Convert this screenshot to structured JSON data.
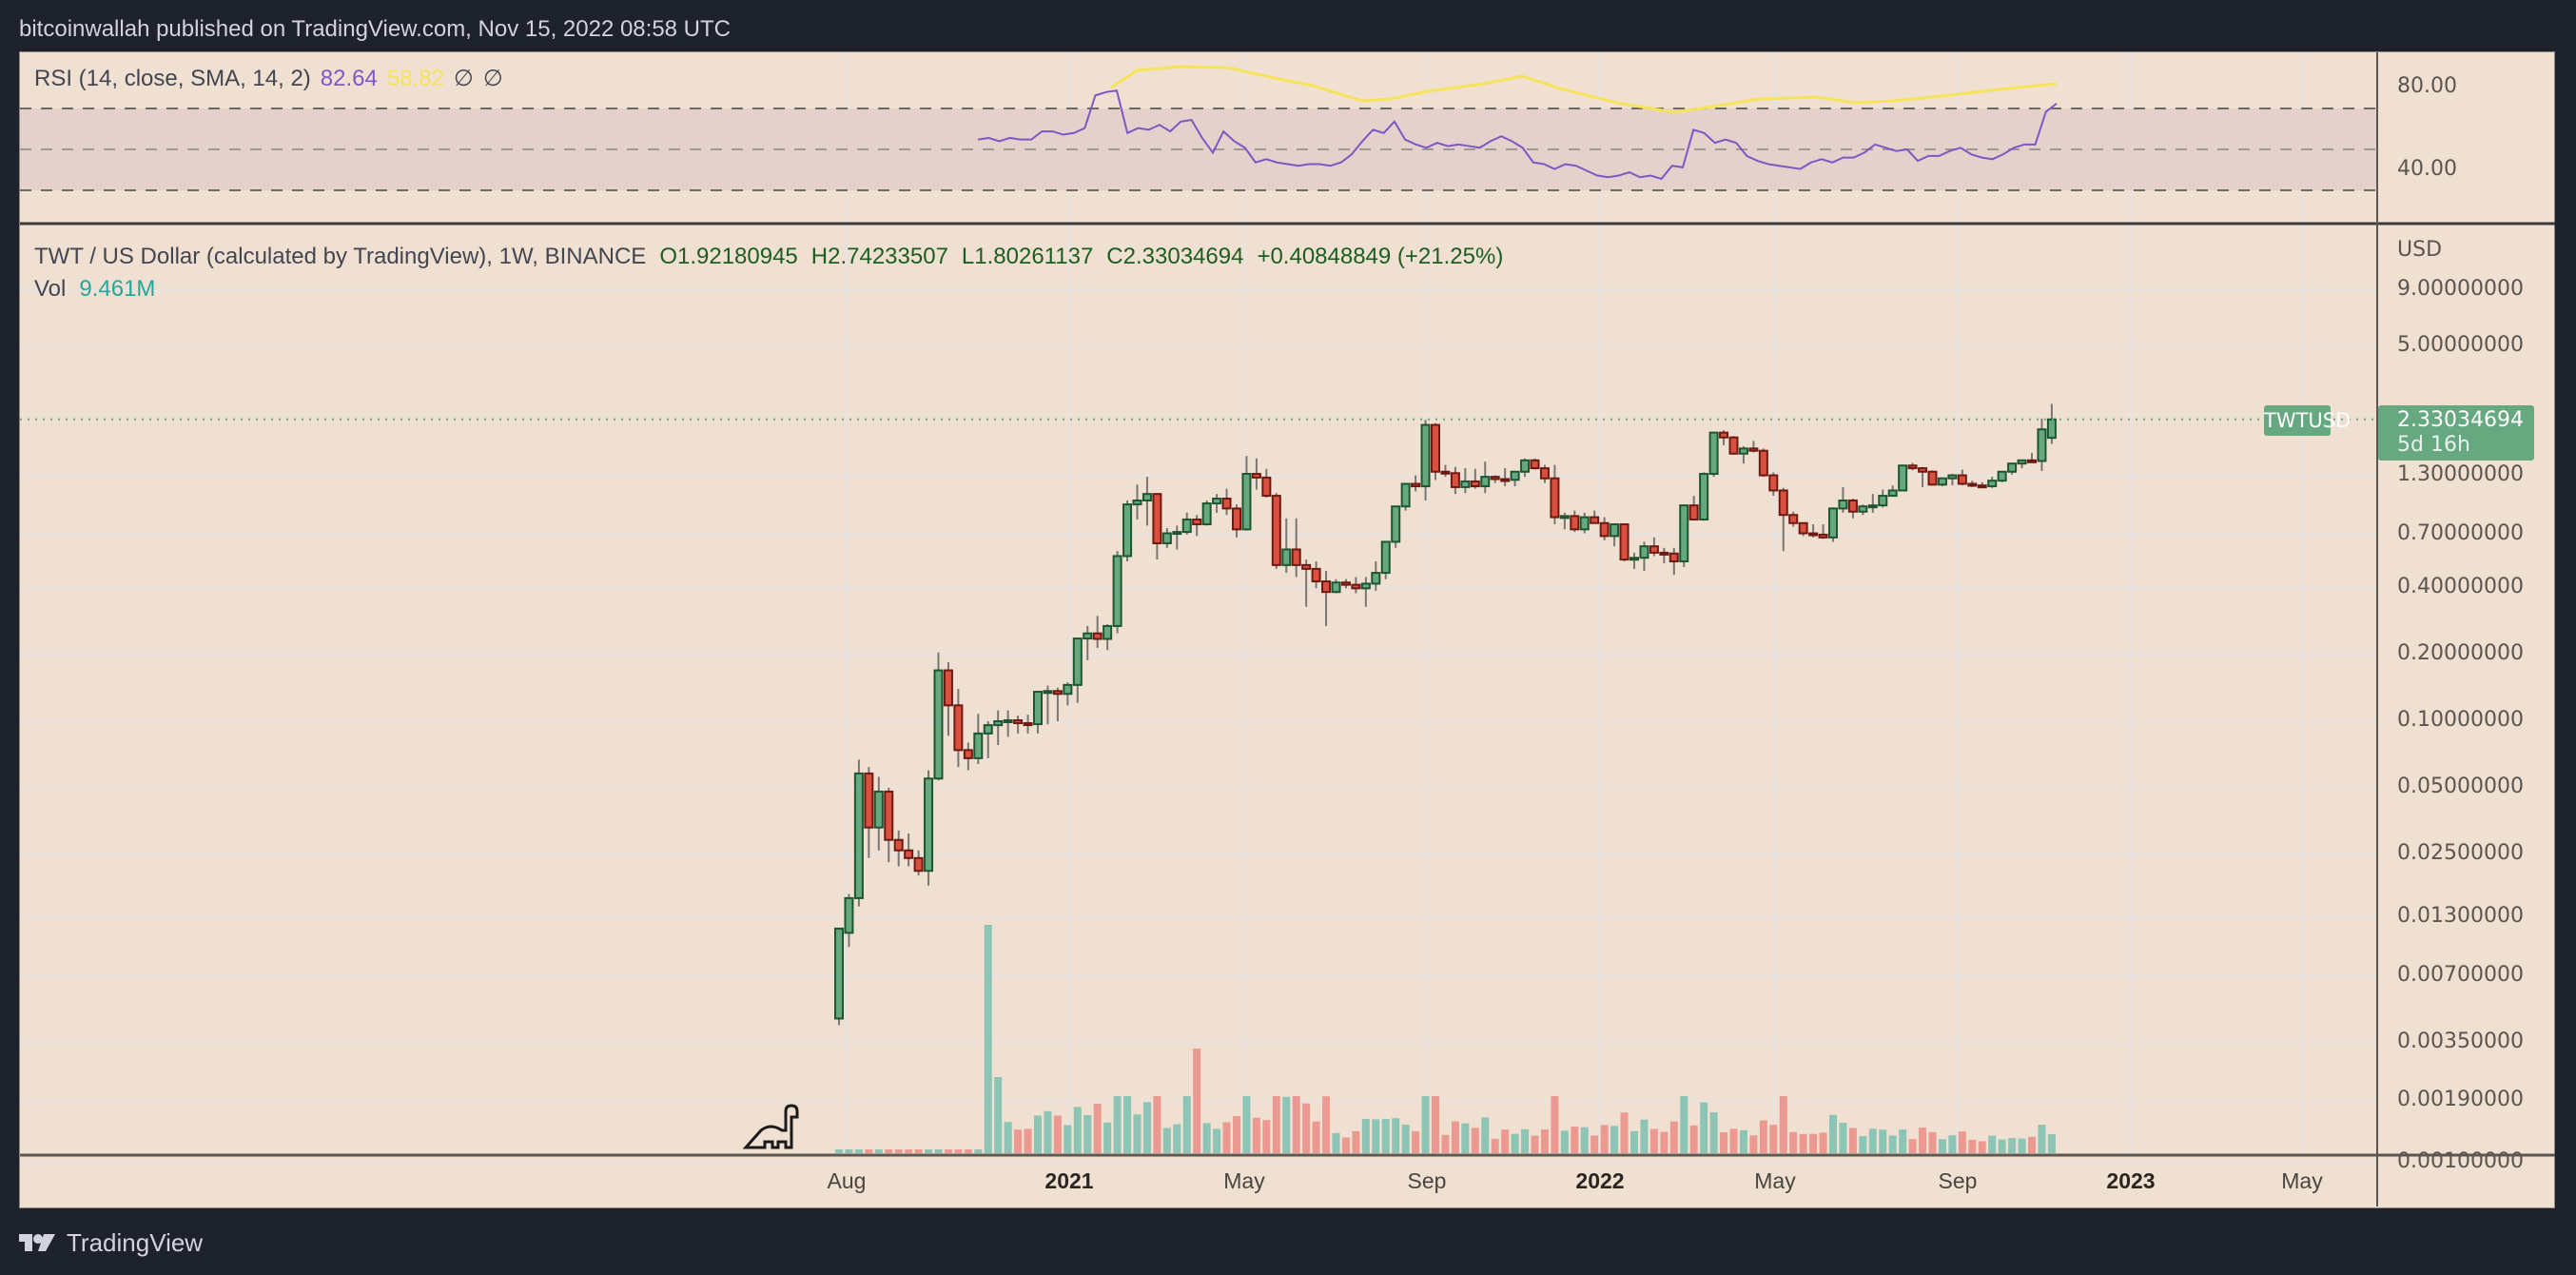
{
  "header": {
    "publish_line": "bitcoinwallah published on TradingView.com, Nov 15, 2022 08:58 UTC"
  },
  "rsi_pane": {
    "label": "RSI (14, close, SMA, 14, 2)",
    "rsi_value": "82.64",
    "sma_value": "58.82",
    "null1": "∅",
    "null2": "∅",
    "axis_labels": [
      "80.00",
      "40.00"
    ],
    "colors": {
      "rsi": "#7e57c2",
      "sma": "#f5e359",
      "band": "#e4d1cc"
    }
  },
  "main_pane": {
    "title": "TWT / US Dollar (calculated by TradingView), 1W, BINANCE",
    "open": "O1.92180945",
    "high": "H2.74233507",
    "low": "L1.80261137",
    "close": "C2.33034694",
    "change": "+0.40848849 (+21.25%)",
    "vol_label": "Vol",
    "vol_value": "9.461M",
    "currency": "USD",
    "symbol_tag": "TWTUSD",
    "last_price": "2.33034694",
    "countdown": "5d 16h",
    "colors": {
      "up": "#66a880",
      "down": "#d9503f",
      "up_border": "#1e5631",
      "down_border": "#6e1a12",
      "vol_up": "#8cc4b6",
      "vol_down": "#ec9a91"
    }
  },
  "time_axis": [
    {
      "label": "Aug",
      "bold": false
    },
    {
      "label": "2021",
      "bold": true
    },
    {
      "label": "May",
      "bold": false
    },
    {
      "label": "Sep",
      "bold": false
    },
    {
      "label": "2022",
      "bold": true
    },
    {
      "label": "May",
      "bold": false
    },
    {
      "label": "Sep",
      "bold": false
    },
    {
      "label": "2023",
      "bold": true
    },
    {
      "label": "May",
      "bold": false
    }
  ],
  "footer": {
    "brand": "TradingView"
  },
  "chart_data": {
    "type": "candlestick",
    "title": "TWT / US Dollar (calculated by TradingView), 1W, BINANCE",
    "scale": "log",
    "ylabel": "USD",
    "y_ticks": [
      "9.00000000",
      "5.00000000",
      "1.30000000",
      "0.70000000",
      "0.40000000",
      "0.20000000",
      "0.10000000",
      "0.05000000",
      "0.02500000",
      "0.01300000",
      "0.00700000",
      "0.00350000",
      "0.00190000",
      "0.00100000"
    ],
    "x_ticks": [
      "Aug",
      "2021",
      "May",
      "Sep",
      "2022",
      "May",
      "Sep",
      "2023",
      "May"
    ],
    "last": {
      "open": 1.92180945,
      "high": 2.74233507,
      "low": 1.80261137,
      "close": 2.33034694,
      "change": 0.40848849,
      "change_pct": 21.25,
      "volume": "9.461M"
    },
    "candles": [
      [
        0.0045,
        0.011,
        0.0042,
        0.0115
      ],
      [
        0.011,
        0.0165,
        0.0095,
        0.0158
      ],
      [
        0.0158,
        0.067,
        0.0145,
        0.058
      ],
      [
        0.058,
        0.062,
        0.024,
        0.033
      ],
      [
        0.033,
        0.056,
        0.026,
        0.048
      ],
      [
        0.048,
        0.05,
        0.023,
        0.029
      ],
      [
        0.029,
        0.032,
        0.022,
        0.026
      ],
      [
        0.026,
        0.031,
        0.022,
        0.024
      ],
      [
        0.024,
        0.026,
        0.02,
        0.021
      ],
      [
        0.021,
        0.06,
        0.018,
        0.055
      ],
      [
        0.055,
        0.205,
        0.054,
        0.17
      ],
      [
        0.17,
        0.185,
        0.086,
        0.118
      ],
      [
        0.118,
        0.14,
        0.062,
        0.074
      ],
      [
        0.074,
        0.08,
        0.06,
        0.068
      ],
      [
        0.068,
        0.108,
        0.064,
        0.088
      ],
      [
        0.088,
        0.1,
        0.068,
        0.096
      ],
      [
        0.096,
        0.112,
        0.078,
        0.1
      ],
      [
        0.1,
        0.112,
        0.085,
        0.101
      ],
      [
        0.101,
        0.106,
        0.088,
        0.098
      ],
      [
        0.098,
        0.107,
        0.088,
        0.097
      ],
      [
        0.097,
        0.125,
        0.088,
        0.136
      ],
      [
        0.136,
        0.145,
        0.097,
        0.137
      ],
      [
        0.137,
        0.142,
        0.1,
        0.133
      ],
      [
        0.133,
        0.15,
        0.118,
        0.146
      ],
      [
        0.146,
        0.19,
        0.121,
        0.237
      ],
      [
        0.237,
        0.27,
        0.189,
        0.25
      ],
      [
        0.25,
        0.3,
        0.215,
        0.236
      ],
      [
        0.236,
        0.275,
        0.21,
        0.27
      ],
      [
        0.27,
        0.59,
        0.25,
        0.56
      ],
      [
        0.56,
        1.0,
        0.53,
        0.96
      ],
      [
        0.96,
        1.18,
        0.82,
        1.0
      ],
      [
        1.0,
        1.28,
        0.77,
        1.07
      ],
      [
        1.07,
        1.08,
        0.54,
        0.64
      ],
      [
        0.64,
        0.75,
        0.61,
        0.71
      ],
      [
        0.71,
        0.77,
        0.6,
        0.72
      ],
      [
        0.72,
        0.88,
        0.7,
        0.82
      ],
      [
        0.82,
        0.86,
        0.69,
        0.78
      ],
      [
        0.78,
        1.0,
        0.77,
        0.97
      ],
      [
        0.97,
        1.07,
        0.88,
        1.02
      ],
      [
        1.02,
        1.13,
        0.86,
        0.92
      ],
      [
        0.92,
        0.96,
        0.68,
        0.74
      ],
      [
        0.74,
        1.59,
        0.73,
        1.32
      ],
      [
        1.32,
        1.55,
        1.12,
        1.27
      ],
      [
        1.27,
        1.39,
        1.03,
        1.05
      ],
      [
        1.05,
        1.08,
        0.49,
        0.51
      ],
      [
        0.51,
        0.83,
        0.47,
        0.6
      ],
      [
        0.6,
        0.83,
        0.45,
        0.51
      ],
      [
        0.51,
        0.54,
        0.33,
        0.49
      ],
      [
        0.49,
        0.53,
        0.4,
        0.43
      ],
      [
        0.43,
        0.48,
        0.27,
        0.385
      ],
      [
        0.385,
        0.44,
        0.38,
        0.425
      ],
      [
        0.425,
        0.44,
        0.4,
        0.415
      ],
      [
        0.415,
        0.45,
        0.38,
        0.4
      ],
      [
        0.4,
        0.45,
        0.33,
        0.42
      ],
      [
        0.42,
        0.53,
        0.39,
        0.47
      ],
      [
        0.47,
        0.6,
        0.44,
        0.65
      ],
      [
        0.65,
        0.84,
        0.61,
        0.94
      ],
      [
        0.94,
        1.15,
        0.9,
        1.19
      ],
      [
        1.19,
        1.3,
        1.1,
        1.16
      ],
      [
        1.16,
        2.32,
        1.0,
        2.2
      ],
      [
        2.2,
        2.24,
        1.24,
        1.35
      ],
      [
        1.35,
        1.45,
        1.28,
        1.33
      ],
      [
        1.33,
        1.42,
        1.07,
        1.15
      ],
      [
        1.15,
        1.4,
        1.08,
        1.22
      ],
      [
        1.22,
        1.39,
        1.13,
        1.16
      ],
      [
        1.16,
        1.5,
        1.08,
        1.28
      ],
      [
        1.28,
        1.3,
        1.2,
        1.25
      ],
      [
        1.25,
        1.4,
        1.16,
        1.24
      ],
      [
        1.24,
        1.33,
        1.16,
        1.35
      ],
      [
        1.35,
        1.55,
        1.28,
        1.52
      ],
      [
        1.52,
        1.55,
        1.38,
        1.4
      ],
      [
        1.4,
        1.45,
        1.2,
        1.26
      ],
      [
        1.26,
        1.45,
        0.78,
        0.84
      ],
      [
        0.84,
        0.88,
        0.74,
        0.85
      ],
      [
        0.85,
        0.9,
        0.72,
        0.74
      ],
      [
        0.74,
        0.88,
        0.71,
        0.84
      ],
      [
        0.84,
        0.9,
        0.8,
        0.79
      ],
      [
        0.79,
        0.84,
        0.66,
        0.69
      ],
      [
        0.69,
        0.78,
        0.62,
        0.78
      ],
      [
        0.78,
        0.78,
        0.53,
        0.54
      ],
      [
        0.54,
        0.58,
        0.49,
        0.55
      ],
      [
        0.55,
        0.65,
        0.48,
        0.62
      ],
      [
        0.62,
        0.68,
        0.56,
        0.58
      ],
      [
        0.58,
        0.61,
        0.52,
        0.575
      ],
      [
        0.575,
        0.61,
        0.46,
        0.53
      ],
      [
        0.53,
        0.96,
        0.5,
        0.95
      ],
      [
        0.95,
        1.05,
        0.83,
        0.82
      ],
      [
        0.82,
        1.34,
        0.81,
        1.32
      ],
      [
        1.32,
        1.89,
        1.28,
        2.03
      ],
      [
        2.03,
        2.08,
        1.78,
        1.93
      ],
      [
        1.93,
        1.96,
        1.61,
        1.63
      ],
      [
        1.63,
        1.76,
        1.47,
        1.72
      ],
      [
        1.72,
        1.86,
        1.65,
        1.68
      ],
      [
        1.68,
        1.72,
        1.28,
        1.3
      ],
      [
        1.3,
        1.34,
        1.05,
        1.11
      ],
      [
        1.11,
        1.14,
        0.59,
        0.86
      ],
      [
        0.86,
        0.89,
        0.76,
        0.79
      ],
      [
        0.79,
        0.79,
        0.69,
        0.71
      ],
      [
        0.71,
        0.78,
        0.68,
        0.7
      ],
      [
        0.7,
        0.78,
        0.67,
        0.68
      ],
      [
        0.68,
        0.93,
        0.65,
        0.92
      ],
      [
        0.92,
        1.15,
        0.88,
        1.0
      ],
      [
        1.0,
        1.02,
        0.83,
        0.89
      ],
      [
        0.89,
        0.96,
        0.86,
        0.94
      ],
      [
        0.94,
        1.07,
        0.88,
        0.95
      ],
      [
        0.95,
        1.12,
        0.93,
        1.05
      ],
      [
        1.05,
        1.17,
        1.04,
        1.11
      ],
      [
        1.11,
        1.33,
        1.1,
        1.44
      ],
      [
        1.44,
        1.48,
        1.37,
        1.4
      ],
      [
        1.4,
        1.42,
        1.15,
        1.35
      ],
      [
        1.35,
        1.37,
        1.17,
        1.18
      ],
      [
        1.18,
        1.25,
        1.16,
        1.26
      ],
      [
        1.26,
        1.32,
        1.17,
        1.3
      ],
      [
        1.3,
        1.38,
        1.17,
        1.19
      ],
      [
        1.19,
        1.23,
        1.15,
        1.17
      ],
      [
        1.17,
        1.21,
        1.15,
        1.16
      ],
      [
        1.16,
        1.28,
        1.14,
        1.23
      ],
      [
        1.23,
        1.3,
        1.21,
        1.35
      ],
      [
        1.35,
        1.43,
        1.31,
        1.47
      ],
      [
        1.47,
        1.52,
        1.4,
        1.52
      ],
      [
        1.52,
        1.64,
        1.48,
        1.51
      ],
      [
        1.51,
        2.35,
        1.36,
        2.1
      ],
      [
        1.922,
        2.742,
        1.803,
        2.33
      ]
    ],
    "volume_note": "Volume bars in lower pane; spike ~Feb 2021, secondary peak ~Jun 2021, latest 9.461M"
  }
}
